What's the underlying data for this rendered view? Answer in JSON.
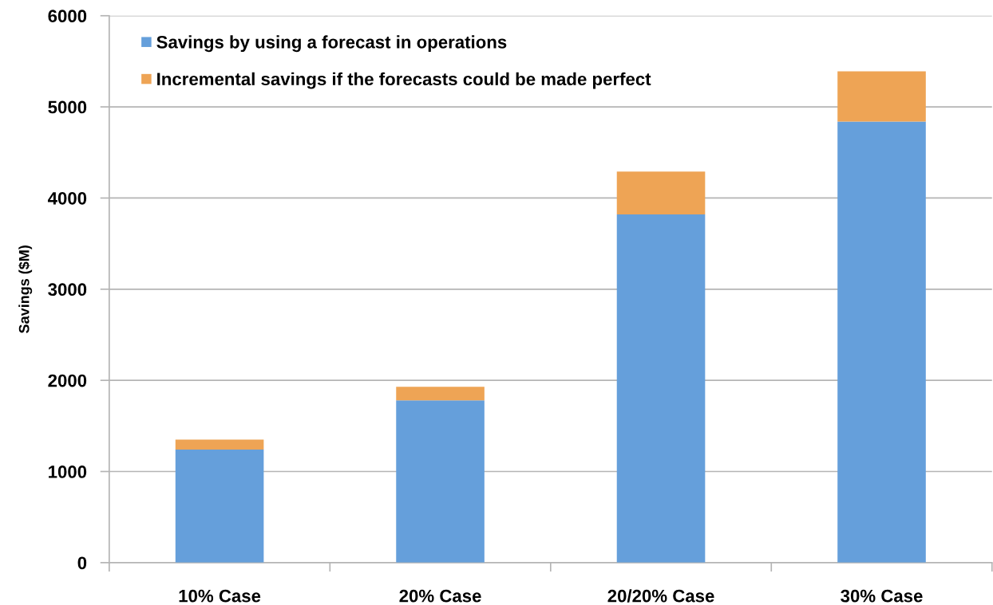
{
  "chart_data": {
    "type": "bar",
    "stacked": true,
    "ylabel": "Savings ($M)",
    "categories": [
      "10% Case",
      "20% Case",
      "20/20% Case",
      "30% Case"
    ],
    "series": [
      {
        "name": "Savings by using a forecast in operations",
        "color": "#659fdb",
        "values": [
          1240,
          1780,
          3820,
          4840
        ]
      },
      {
        "name": "Incremental savings if the forecasts could be made perfect",
        "color": "#eea455",
        "values": [
          110,
          150,
          470,
          550
        ]
      }
    ],
    "ylim": [
      0,
      6000
    ],
    "yticks": [
      0,
      1000,
      2000,
      3000,
      4000,
      5000,
      6000
    ],
    "grid": "y",
    "legend": "top left"
  }
}
